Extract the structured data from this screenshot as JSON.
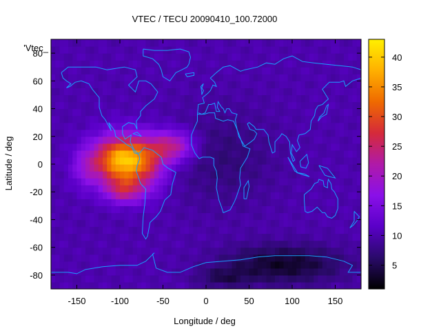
{
  "chart_data": {
    "type": "heatmap",
    "title": "VTEC / TECU 20090410_100.72000",
    "xlabel": "Longitude / deg",
    "ylabel": "Latitude / deg",
    "legend_key": "'Vtec_",
    "xlim": [
      -180,
      180
    ],
    "ylim": [
      -90,
      90
    ],
    "x_ticks": [
      -150,
      -100,
      -50,
      0,
      50,
      100,
      150
    ],
    "y_ticks": [
      -80,
      -60,
      -40,
      -20,
      0,
      20,
      40,
      60,
      80
    ],
    "colorbar": {
      "range": [
        1,
        43
      ],
      "ticks": [
        5,
        10,
        15,
        20,
        25,
        30,
        35,
        40
      ],
      "palette": [
        "#000000",
        "#2a0a6a",
        "#5a00c8",
        "#8a10e8",
        "#b01aa8",
        "#d52a3a",
        "#ef6a00",
        "#ffb000",
        "#fff000"
      ]
    },
    "grid": false,
    "field": {
      "background_tecu": 10,
      "enhancements": [
        {
          "lon": -95,
          "lat": 3,
          "slon": 35,
          "slat": 17,
          "amp": 30
        },
        {
          "lon": -95,
          "lat": -19,
          "slon": 22,
          "slat": 9,
          "amp": 11
        },
        {
          "lon": -40,
          "lat": 13,
          "slon": 26,
          "slat": 11,
          "amp": 13
        },
        {
          "lon": -140,
          "lat": -3,
          "slon": 16,
          "slat": 14,
          "amp": 5
        },
        {
          "lon": -65,
          "lat": -5,
          "slon": 20,
          "slat": 20,
          "amp": 4
        }
      ],
      "depletions": [
        {
          "lon": 20,
          "lat": 5,
          "slon": 60,
          "slat": 35,
          "amp": -3
        },
        {
          "lon": 90,
          "lat": -72,
          "slon": 70,
          "slat": 14,
          "amp": -7
        },
        {
          "lon": 20,
          "lat": -82,
          "slon": 30,
          "slat": 7,
          "amp": -4
        }
      ]
    },
    "coastlines": [
      [
        [
          -168,
          66
        ],
        [
          -160,
          70
        ],
        [
          -145,
          70
        ],
        [
          -128,
          70
        ],
        [
          -115,
          68
        ],
        [
          -95,
          70
        ],
        [
          -82,
          68
        ],
        [
          -80,
          63
        ],
        [
          -90,
          57
        ],
        [
          -82,
          52
        ],
        [
          -78,
          60
        ],
        [
          -70,
          60
        ],
        [
          -64,
          58
        ],
        [
          -56,
          52
        ],
        [
          -60,
          47
        ],
        [
          -66,
          44
        ],
        [
          -70,
          42
        ],
        [
          -76,
          38
        ],
        [
          -76,
          35
        ],
        [
          -81,
          31
        ],
        [
          -80,
          25
        ],
        [
          -83,
          29
        ],
        [
          -90,
          30
        ],
        [
          -97,
          27
        ],
        [
          -97,
          22
        ],
        [
          -94,
          18
        ],
        [
          -87,
          21
        ],
        [
          -88,
          16
        ],
        [
          -84,
          11
        ],
        [
          -80,
          8
        ],
        [
          -77,
          8
        ],
        [
          -72,
          12
        ],
        [
          -62,
          10
        ],
        [
          -52,
          5
        ],
        [
          -50,
          0
        ],
        [
          -44,
          -3
        ],
        [
          -35,
          -6
        ],
        [
          -39,
          -14
        ],
        [
          -41,
          -22
        ],
        [
          -48,
          -26
        ],
        [
          -53,
          -34
        ],
        [
          -58,
          -38
        ],
        [
          -65,
          -42
        ],
        [
          -68,
          -52
        ],
        [
          -70,
          -54
        ],
        [
          -74,
          -50
        ],
        [
          -73,
          -38
        ],
        [
          -71,
          -28
        ],
        [
          -70,
          -18
        ],
        [
          -76,
          -14
        ],
        [
          -81,
          -5
        ],
        [
          -80,
          -1
        ],
        [
          -77,
          4
        ],
        [
          -78,
          7
        ],
        [
          -83,
          8
        ],
        [
          -86,
          12
        ],
        [
          -92,
          14
        ],
        [
          -96,
          16
        ],
        [
          -105,
          20
        ],
        [
          -106,
          24
        ],
        [
          -113,
          30
        ],
        [
          -110,
          24
        ],
        [
          -117,
          32
        ],
        [
          -121,
          35
        ],
        [
          -124,
          41
        ],
        [
          -124,
          48
        ],
        [
          -132,
          54
        ],
        [
          -136,
          58
        ],
        [
          -145,
          60
        ],
        [
          -152,
          59
        ],
        [
          -158,
          56
        ],
        [
          -162,
          55
        ],
        [
          -157,
          58
        ],
        [
          -162,
          60
        ],
        [
          -166,
          62
        ],
        [
          -168,
          66
        ]
      ],
      [
        [
          -10,
          36
        ],
        [
          -6,
          36
        ],
        [
          -2,
          36
        ],
        [
          3,
          37
        ],
        [
          10,
          37
        ],
        [
          11,
          33
        ],
        [
          20,
          31
        ],
        [
          25,
          32
        ],
        [
          32,
          31
        ],
        [
          34,
          28
        ],
        [
          38,
          22
        ],
        [
          43,
          13
        ],
        [
          51,
          11
        ],
        [
          48,
          5
        ],
        [
          40,
          -3
        ],
        [
          39,
          -10
        ],
        [
          40,
          -15
        ],
        [
          35,
          -24
        ],
        [
          33,
          -27
        ],
        [
          28,
          -33
        ],
        [
          20,
          -35
        ],
        [
          18,
          -31
        ],
        [
          15,
          -26
        ],
        [
          12,
          -17
        ],
        [
          13,
          -10
        ],
        [
          12,
          -5
        ],
        [
          9,
          -1
        ],
        [
          9,
          4
        ],
        [
          5,
          5
        ],
        [
          -4,
          5
        ],
        [
          -8,
          4
        ],
        [
          -13,
          8
        ],
        [
          -17,
          14
        ],
        [
          -17,
          21
        ],
        [
          -13,
          27
        ],
        [
          -10,
          31
        ],
        [
          -10,
          36
        ]
      ],
      [
        [
          -10,
          36
        ],
        [
          -9,
          43
        ],
        [
          -2,
          44
        ],
        [
          -4,
          48
        ],
        [
          2,
          51
        ],
        [
          5,
          53
        ],
        [
          8,
          57
        ],
        [
          12,
          56
        ],
        [
          10,
          59
        ],
        [
          5,
          62
        ],
        [
          12,
          66
        ],
        [
          20,
          70
        ],
        [
          28,
          71
        ],
        [
          40,
          67
        ],
        [
          45,
          68
        ],
        [
          60,
          70
        ],
        [
          70,
          73
        ],
        [
          80,
          72
        ],
        [
          90,
          76
        ],
        [
          100,
          78
        ],
        [
          112,
          74
        ],
        [
          125,
          73
        ],
        [
          140,
          72
        ],
        [
          155,
          71
        ],
        [
          170,
          70
        ],
        [
          180,
          68
        ]
      ],
      [
        [
          180,
          62
        ],
        [
          170,
          60
        ],
        [
          162,
          56
        ],
        [
          160,
          60
        ],
        [
          155,
          59
        ],
        [
          143,
          59
        ],
        [
          135,
          54
        ],
        [
          142,
          47
        ],
        [
          135,
          43
        ],
        [
          130,
          42
        ],
        [
          127,
          39
        ],
        [
          126,
          35
        ],
        [
          122,
          31
        ],
        [
          121,
          25
        ],
        [
          115,
          22
        ],
        [
          108,
          21
        ],
        [
          106,
          17
        ],
        [
          109,
          12
        ],
        [
          105,
          9
        ],
        [
          103,
          11
        ],
        [
          100,
          14
        ],
        [
          99,
          8
        ],
        [
          103,
          3
        ],
        [
          101,
          2
        ],
        [
          98,
          8
        ],
        [
          97,
          16
        ],
        [
          93,
          20
        ],
        [
          88,
          22
        ],
        [
          86,
          20
        ],
        [
          80,
          16
        ],
        [
          80,
          9
        ],
        [
          77,
          8
        ],
        [
          73,
          16
        ],
        [
          72,
          21
        ],
        [
          67,
          25
        ],
        [
          58,
          25
        ],
        [
          56,
          27
        ],
        [
          50,
          30
        ],
        [
          48,
          29
        ],
        [
          51,
          25
        ],
        [
          56,
          24
        ],
        [
          59,
          22
        ],
        [
          56,
          18
        ],
        [
          52,
          16
        ],
        [
          45,
          13
        ],
        [
          43,
          15
        ],
        [
          38,
          20
        ],
        [
          35,
          28
        ],
        [
          34,
          32
        ],
        [
          36,
          36
        ],
        [
          30,
          37
        ],
        [
          27,
          40
        ],
        [
          24,
          40
        ],
        [
          22,
          37
        ],
        [
          20,
          40
        ],
        [
          18,
          41
        ],
        [
          14,
          45
        ],
        [
          13,
          41
        ],
        [
          16,
          38
        ],
        [
          12,
          38
        ],
        [
          10,
          44
        ],
        [
          6,
          43
        ],
        [
          3,
          43
        ],
        [
          -1,
          37
        ],
        [
          -5,
          36
        ],
        [
          -9,
          37
        ]
      ],
      [
        [
          114,
          -22
        ],
        [
          114,
          -26
        ],
        [
          115,
          -34
        ],
        [
          118,
          -35
        ],
        [
          123,
          -34
        ],
        [
          129,
          -31
        ],
        [
          135,
          -35
        ],
        [
          138,
          -35
        ],
        [
          141,
          -38
        ],
        [
          146,
          -39
        ],
        [
          150,
          -37
        ],
        [
          153,
          -32
        ],
        [
          153,
          -25
        ],
        [
          149,
          -20
        ],
        [
          146,
          -18
        ],
        [
          145,
          -14
        ],
        [
          142,
          -11
        ],
        [
          141,
          -14
        ],
        [
          141,
          -17
        ],
        [
          137,
          -16
        ],
        [
          136,
          -12
        ],
        [
          131,
          -11
        ],
        [
          130,
          -13
        ],
        [
          126,
          -14
        ],
        [
          122,
          -18
        ],
        [
          114,
          -22
        ]
      ],
      [
        [
          -73,
          83
        ],
        [
          -60,
          82
        ],
        [
          -45,
          82
        ],
        [
          -30,
          83
        ],
        [
          -20,
          81
        ],
        [
          -18,
          77
        ],
        [
          -20,
          72
        ],
        [
          -22,
          70
        ],
        [
          -28,
          68
        ],
        [
          -35,
          66
        ],
        [
          -42,
          60
        ],
        [
          -50,
          63
        ],
        [
          -52,
          68
        ],
        [
          -55,
          72
        ],
        [
          -62,
          76
        ],
        [
          -73,
          78
        ],
        [
          -73,
          83
        ]
      ],
      [
        [
          -180,
          -78
        ],
        [
          -160,
          -78
        ],
        [
          -150,
          -79
        ],
        [
          -140,
          -76
        ],
        [
          -120,
          -74
        ],
        [
          -100,
          -73
        ],
        [
          -80,
          -73
        ],
        [
          -70,
          -70
        ],
        [
          -60,
          -64
        ],
        [
          -62,
          -65
        ],
        [
          -58,
          -75
        ],
        [
          -45,
          -78
        ],
        [
          -30,
          -78
        ],
        [
          -15,
          -74
        ],
        [
          0,
          -71
        ],
        [
          20,
          -70
        ],
        [
          40,
          -69
        ],
        [
          60,
          -67
        ],
        [
          80,
          -66
        ],
        [
          100,
          -66
        ],
        [
          120,
          -66
        ],
        [
          140,
          -67
        ],
        [
          160,
          -70
        ],
        [
          170,
          -73
        ],
        [
          165,
          -78
        ],
        [
          180,
          -78
        ]
      ],
      [
        [
          -5,
          50
        ],
        [
          -3,
          53
        ],
        [
          -5,
          55
        ],
        [
          -3,
          58
        ],
        [
          -6,
          56
        ],
        [
          -5,
          52
        ],
        [
          -5,
          50
        ]
      ],
      [
        [
          -24,
          65
        ],
        [
          -14,
          66
        ],
        [
          -14,
          64
        ],
        [
          -22,
          63
        ],
        [
          -24,
          65
        ]
      ],
      [
        [
          130,
          31
        ],
        [
          134,
          34
        ],
        [
          140,
          36
        ],
        [
          141,
          40
        ],
        [
          142,
          43
        ],
        [
          140,
          42
        ],
        [
          137,
          37
        ],
        [
          132,
          34
        ],
        [
          130,
          31
        ]
      ],
      [
        [
          44,
          -25
        ],
        [
          47,
          -25
        ],
        [
          50,
          -16
        ],
        [
          49,
          -12
        ],
        [
          44,
          -17
        ],
        [
          44,
          -25
        ]
      ],
      [
        [
          95,
          5
        ],
        [
          100,
          0
        ],
        [
          106,
          -6
        ],
        [
          103,
          -5
        ],
        [
          95,
          5
        ]
      ],
      [
        [
          105,
          -6
        ],
        [
          114,
          -8
        ],
        [
          120,
          -9
        ],
        [
          114,
          -7
        ],
        [
          105,
          -6
        ]
      ],
      [
        [
          109,
          2
        ],
        [
          117,
          7
        ],
        [
          119,
          1
        ],
        [
          116,
          -3
        ],
        [
          110,
          -2
        ],
        [
          109,
          2
        ]
      ],
      [
        [
          131,
          -1
        ],
        [
          141,
          -3
        ],
        [
          150,
          -10
        ],
        [
          143,
          -9
        ],
        [
          138,
          -8
        ],
        [
          131,
          -1
        ]
      ],
      [
        [
          172,
          -34
        ],
        [
          178,
          -38
        ],
        [
          175,
          -41
        ],
        [
          171,
          -44
        ],
        [
          167,
          -46
        ],
        [
          172,
          -41
        ],
        [
          172,
          -34
        ]
      ],
      [
        [
          -85,
          22
        ],
        [
          -75,
          20
        ],
        [
          -80,
          23
        ],
        [
          -85,
          22
        ]
      ]
    ]
  }
}
